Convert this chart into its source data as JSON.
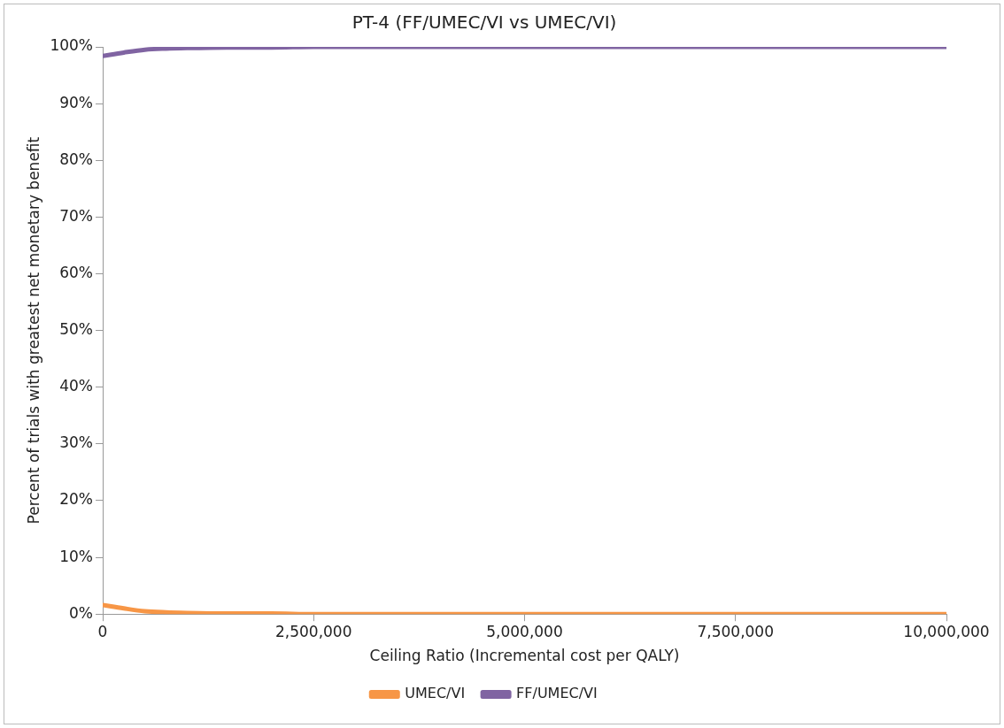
{
  "chart_data": {
    "type": "line",
    "title": "PT-4 (FF/UMEC/VI vs UMEC/VI)",
    "xlabel": "Ceiling Ratio (Incremental cost per QALY)",
    "ylabel": "Percent of trials with greatest net monetary benefit",
    "x": [
      0,
      250000,
      500000,
      750000,
      1000000,
      1500000,
      2000000,
      2500000,
      5000000,
      7500000,
      10000000
    ],
    "series": [
      {
        "name": "UMEC/VI",
        "color": "#f79646",
        "values": [
          1.6,
          1.0,
          0.5,
          0.3,
          0.2,
          0.1,
          0.1,
          0,
          0,
          0,
          0
        ]
      },
      {
        "name": "FF/UMEC/VI",
        "color": "#8064a2",
        "values": [
          98.4,
          99.0,
          99.5,
          99.7,
          99.8,
          99.9,
          99.9,
          100,
          100,
          100,
          100
        ]
      }
    ],
    "xlim": [
      0,
      10000000
    ],
    "xticks": [
      {
        "value": 0,
        "label": "0"
      },
      {
        "value": 2500000,
        "label": "2,500,000"
      },
      {
        "value": 5000000,
        "label": "5,000,000"
      },
      {
        "value": 7500000,
        "label": "7,500,000"
      },
      {
        "value": 10000000,
        "label": "10,000,000"
      }
    ],
    "ylim": [
      0,
      100
    ],
    "yticks": [
      {
        "value": 0,
        "label": "0%"
      },
      {
        "value": 10,
        "label": "10%"
      },
      {
        "value": 20,
        "label": "20%"
      },
      {
        "value": 30,
        "label": "30%"
      },
      {
        "value": 40,
        "label": "40%"
      },
      {
        "value": 50,
        "label": "50%"
      },
      {
        "value": 60,
        "label": "60%"
      },
      {
        "value": 70,
        "label": "70%"
      },
      {
        "value": 80,
        "label": "80%"
      },
      {
        "value": 90,
        "label": "90%"
      },
      {
        "value": 100,
        "label": "100%"
      }
    ],
    "grid": false,
    "legend": "bottom",
    "marker": "none",
    "line_style": "solid"
  }
}
